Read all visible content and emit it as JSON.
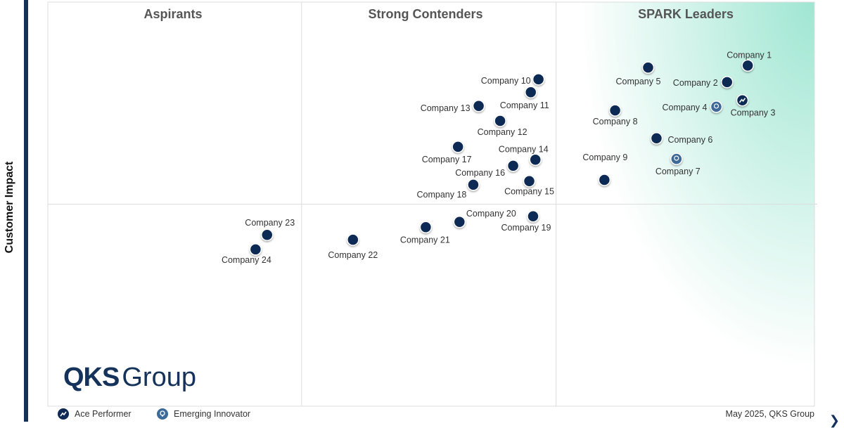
{
  "chart_data": {
    "type": "scatter",
    "title": "",
    "xlabel": "",
    "ylabel": "Customer Impact",
    "xlim": [
      0,
      100
    ],
    "ylim": [
      0,
      100
    ],
    "grid": false,
    "quadrant_dividers": {
      "x": [
        33.1,
        66.3
      ],
      "y": 50
    },
    "quadrants": [
      "Aspirants",
      "Strong Contenders",
      "SPARK Leaders"
    ],
    "points": [
      {
        "name": "Company 1",
        "x": 91.3,
        "y": 84.3,
        "type": "standard"
      },
      {
        "name": "Company 2",
        "x": 88.6,
        "y": 80.2,
        "type": "standard"
      },
      {
        "name": "Company 3",
        "x": 90.6,
        "y": 75.7,
        "type": "ace"
      },
      {
        "name": "Company 4",
        "x": 87.2,
        "y": 74.1,
        "type": "innovator"
      },
      {
        "name": "Company 5",
        "x": 78.3,
        "y": 83.8,
        "type": "standard"
      },
      {
        "name": "Company 6",
        "x": 79.4,
        "y": 66.3,
        "type": "standard"
      },
      {
        "name": "Company 7",
        "x": 82.0,
        "y": 61.2,
        "type": "innovator"
      },
      {
        "name": "Company 8",
        "x": 74.0,
        "y": 73.2,
        "type": "standard"
      },
      {
        "name": "Company 9",
        "x": 72.6,
        "y": 56.0,
        "type": "standard"
      },
      {
        "name": "Company 10",
        "x": 64.0,
        "y": 80.9,
        "type": "standard"
      },
      {
        "name": "Company 11",
        "x": 63.0,
        "y": 77.7,
        "type": "standard"
      },
      {
        "name": "Company 12",
        "x": 59.0,
        "y": 70.6,
        "type": "standard"
      },
      {
        "name": "Company 13",
        "x": 56.2,
        "y": 74.3,
        "type": "standard"
      },
      {
        "name": "Company 14",
        "x": 63.6,
        "y": 61.0,
        "type": "standard"
      },
      {
        "name": "Company 15",
        "x": 62.8,
        "y": 55.7,
        "type": "standard"
      },
      {
        "name": "Company 16",
        "x": 60.7,
        "y": 59.5,
        "type": "standard"
      },
      {
        "name": "Company 17",
        "x": 53.5,
        "y": 64.2,
        "type": "standard"
      },
      {
        "name": "Company 18",
        "x": 55.5,
        "y": 54.8,
        "type": "standard"
      },
      {
        "name": "Company 19",
        "x": 63.3,
        "y": 47.0,
        "type": "standard"
      },
      {
        "name": "Company 20",
        "x": 53.7,
        "y": 45.6,
        "type": "standard"
      },
      {
        "name": "Company 21",
        "x": 49.3,
        "y": 44.3,
        "type": "standard"
      },
      {
        "name": "Company 22",
        "x": 39.8,
        "y": 41.2,
        "type": "standard"
      },
      {
        "name": "Company 23",
        "x": 28.6,
        "y": 42.4,
        "type": "standard"
      },
      {
        "name": "Company 24",
        "x": 27.1,
        "y": 38.8,
        "type": "standard"
      }
    ],
    "legend": {
      "ace": "Ace Performer",
      "innovator": "Emerging Innovator"
    },
    "colors": {
      "point": "#0f2a55",
      "innovator": "#3d6b99",
      "leader_gradient": "#9fe6d2"
    }
  },
  "logo": {
    "bold": "QKS",
    "light": "Group"
  },
  "credit": "May 2025, QKS Group"
}
